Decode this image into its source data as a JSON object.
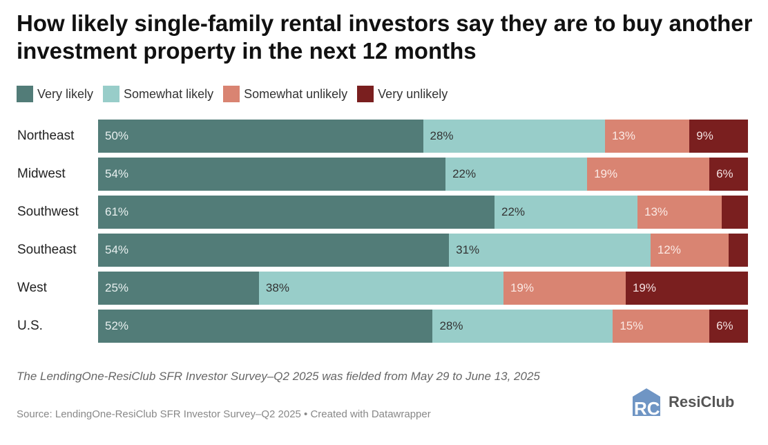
{
  "chart_data": {
    "type": "bar",
    "stacked": true,
    "orientation": "horizontal",
    "title": "How likely single-family rental investors say they are to buy another investment property in the next 12 months",
    "legend_position": "top-left",
    "categories": [
      "Northeast",
      "Midwest",
      "Southwest",
      "Southeast",
      "West",
      "U.S."
    ],
    "series": [
      {
        "name": "Very likely",
        "color": "#527c78",
        "text_color": "#e8f0ef",
        "values": [
          50,
          54,
          61,
          54,
          25,
          52
        ],
        "labels": [
          "50%",
          "54%",
          "61%",
          "54%",
          "25%",
          "52%"
        ]
      },
      {
        "name": "Somewhat likely",
        "color": "#98cdc9",
        "text_color": "#333333",
        "values": [
          28,
          22,
          22,
          31,
          38,
          28
        ],
        "labels": [
          "28%",
          "22%",
          "22%",
          "31%",
          "38%",
          "28%"
        ]
      },
      {
        "name": "Somewhat unlikely",
        "color": "#d98472",
        "text_color": "#fbe9e4",
        "values": [
          13,
          19,
          13,
          12,
          19,
          15
        ],
        "labels": [
          "13%",
          "19%",
          "13%",
          "12%",
          "19%",
          "15%"
        ]
      },
      {
        "name": "Very unlikely",
        "color": "#7a1f1f",
        "text_color": "#f3e1e1",
        "values": [
          9,
          6,
          4,
          3,
          19,
          6
        ],
        "labels": [
          "9%",
          "6%",
          "",
          "",
          "19%",
          "6%"
        ]
      }
    ],
    "xlim": [
      0,
      100
    ]
  },
  "footer": {
    "note": "The LendingOne-ResiClub SFR Investor Survey–Q2 2025 was fielded from May 29 to June 13, 2025",
    "source": "Source: LendingOne-ResiClub SFR Investor Survey–Q2 2025 • Created with Datawrapper",
    "logo_text": "ResiClub"
  }
}
